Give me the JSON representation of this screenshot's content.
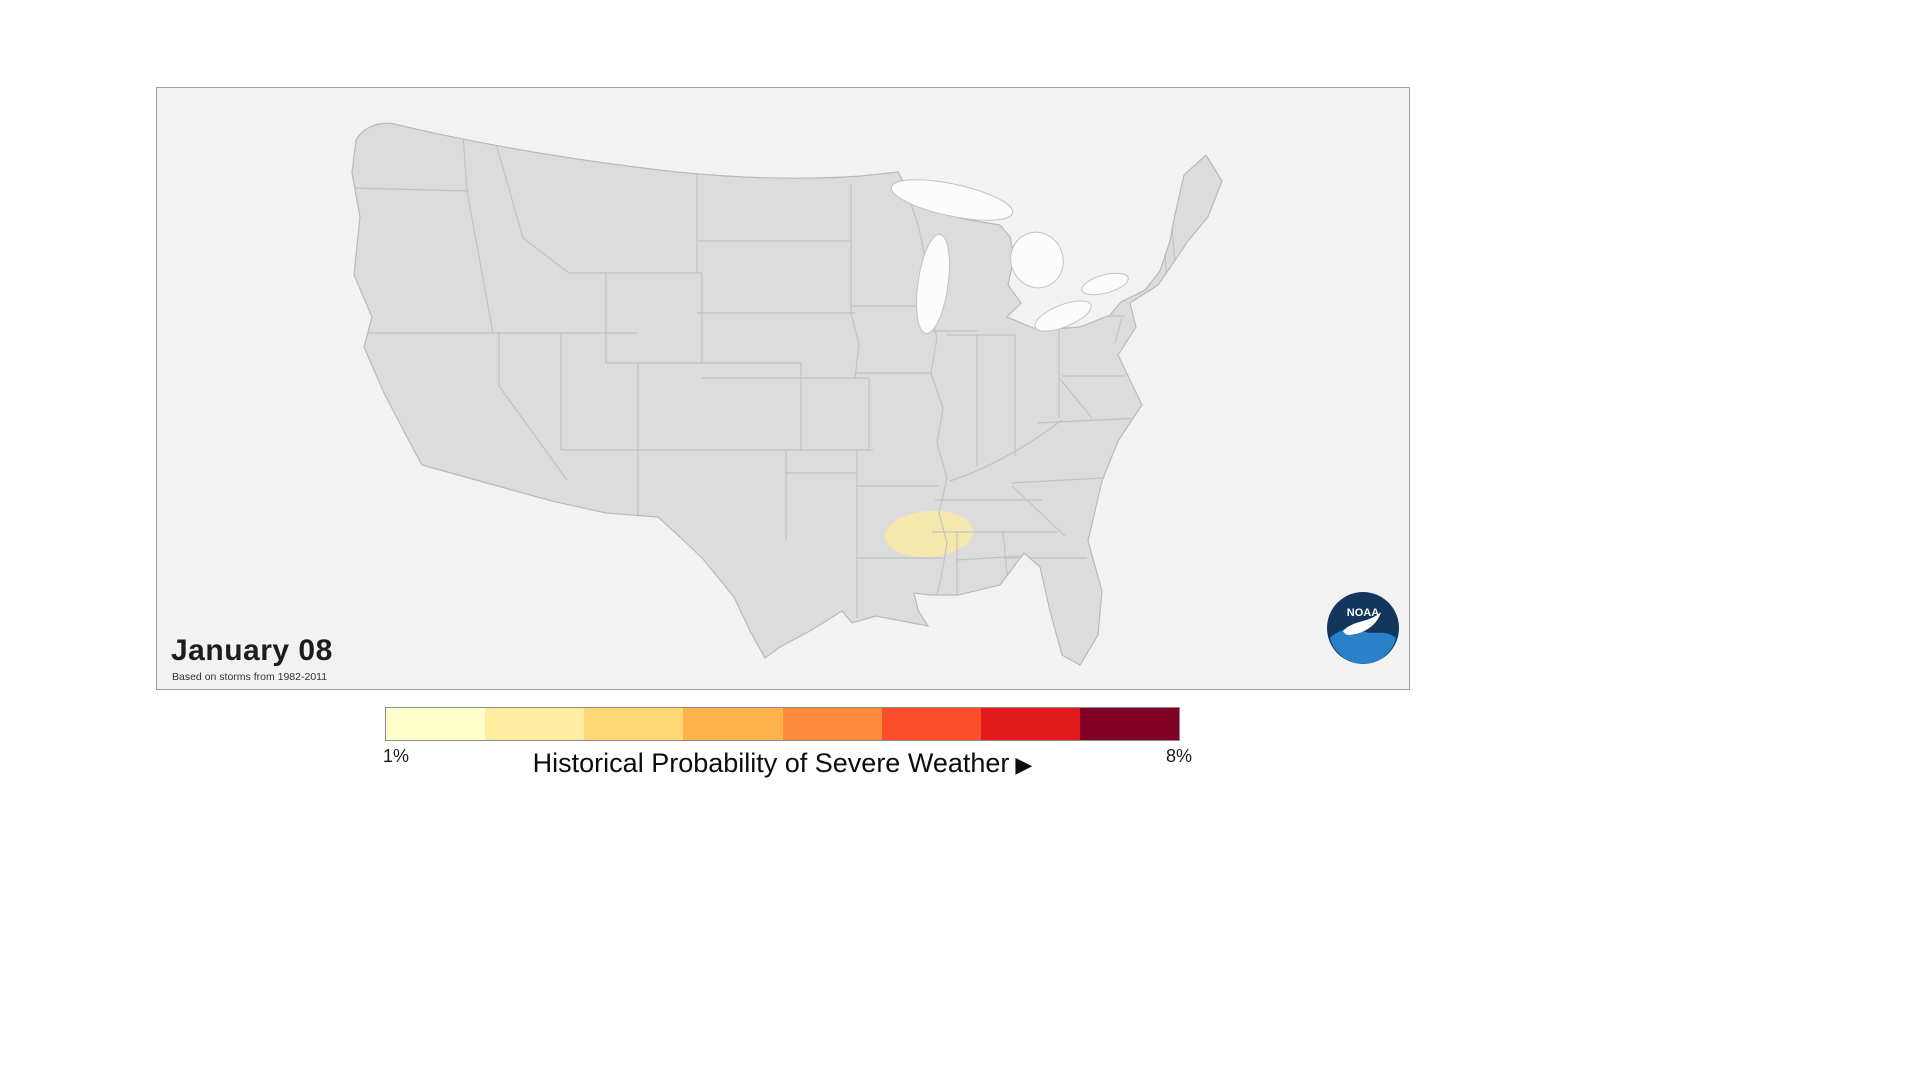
{
  "page": {
    "background_color": "#ffffff"
  },
  "map_panel": {
    "date_label": "January 08",
    "source_note": "Based on storms from 1982-2011",
    "background_color": "#f2f2f2",
    "land_color": "#dcdcdc",
    "state_border_color": "#c2c2c2",
    "lake_color": "#fcfcfc",
    "highlight_region": {
      "color": "#f4e8ac",
      "location": "lower Mississippi valley near AR / LA / MS borders"
    },
    "noaa_logo": {
      "label": "NOAA",
      "navy": "#12365e",
      "blue": "#2a80c9",
      "white": "#ffffff"
    }
  },
  "legend": {
    "title": "Historical Probability of Severe Weather",
    "arrow": "▶",
    "min_label": "1%",
    "max_label": "8%",
    "colors": [
      "#FFFFCC",
      "#FFEDA0",
      "#FED976",
      "#FEB24C",
      "#FD8D3C",
      "#FC4E2A",
      "#E31A1C",
      "#800026"
    ]
  }
}
